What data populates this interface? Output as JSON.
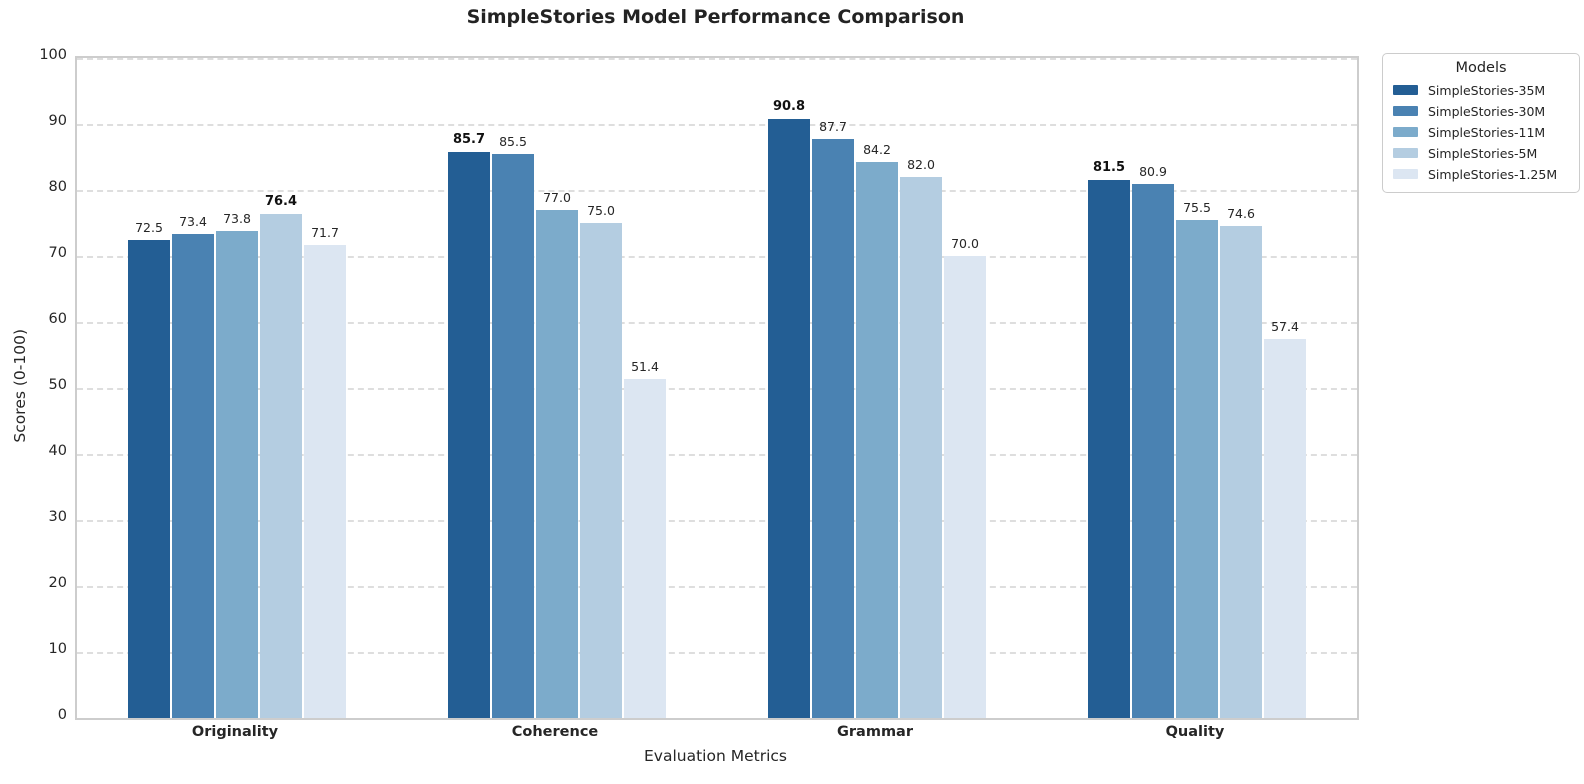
{
  "title": "SimpleStories Model Performance Comparison",
  "axes": {
    "xlabel": "Evaluation Metrics",
    "ylabel": "Scores (0-100)"
  },
  "legend": {
    "title": "Models"
  },
  "chart_data": {
    "type": "bar",
    "title": "SimpleStories Model Performance Comparison",
    "xlabel": "Evaluation Metrics",
    "ylabel": "Scores (0-100)",
    "categories": [
      "Originality",
      "Coherence",
      "Grammar",
      "Quality"
    ],
    "series": [
      {
        "name": "SimpleStories-35M",
        "color": "#235E94",
        "values": [
          72.5,
          85.7,
          90.8,
          81.5
        ]
      },
      {
        "name": "SimpleStories-30M",
        "color": "#4A82B2",
        "values": [
          73.4,
          85.5,
          87.7,
          80.9
        ]
      },
      {
        "name": "SimpleStories-11M",
        "color": "#7CABCB",
        "values": [
          73.8,
          77.0,
          84.2,
          75.5
        ]
      },
      {
        "name": "SimpleStories-5M",
        "color": "#B4CDE1",
        "values": [
          76.4,
          75.0,
          82.0,
          74.6
        ]
      },
      {
        "name": "SimpleStories-1.25M",
        "color": "#DCE6F2",
        "values": [
          71.7,
          51.4,
          70.0,
          57.4
        ]
      }
    ],
    "ylim": [
      0,
      100
    ],
    "yticks": [
      0,
      10,
      20,
      30,
      40,
      50,
      60,
      70,
      80,
      90,
      100
    ],
    "value_label_decimals": 1,
    "bold_rule": "max value per category is bold",
    "legend_title": "Models",
    "legend_position": "outside upper right",
    "grid": "horizontal dashed"
  }
}
